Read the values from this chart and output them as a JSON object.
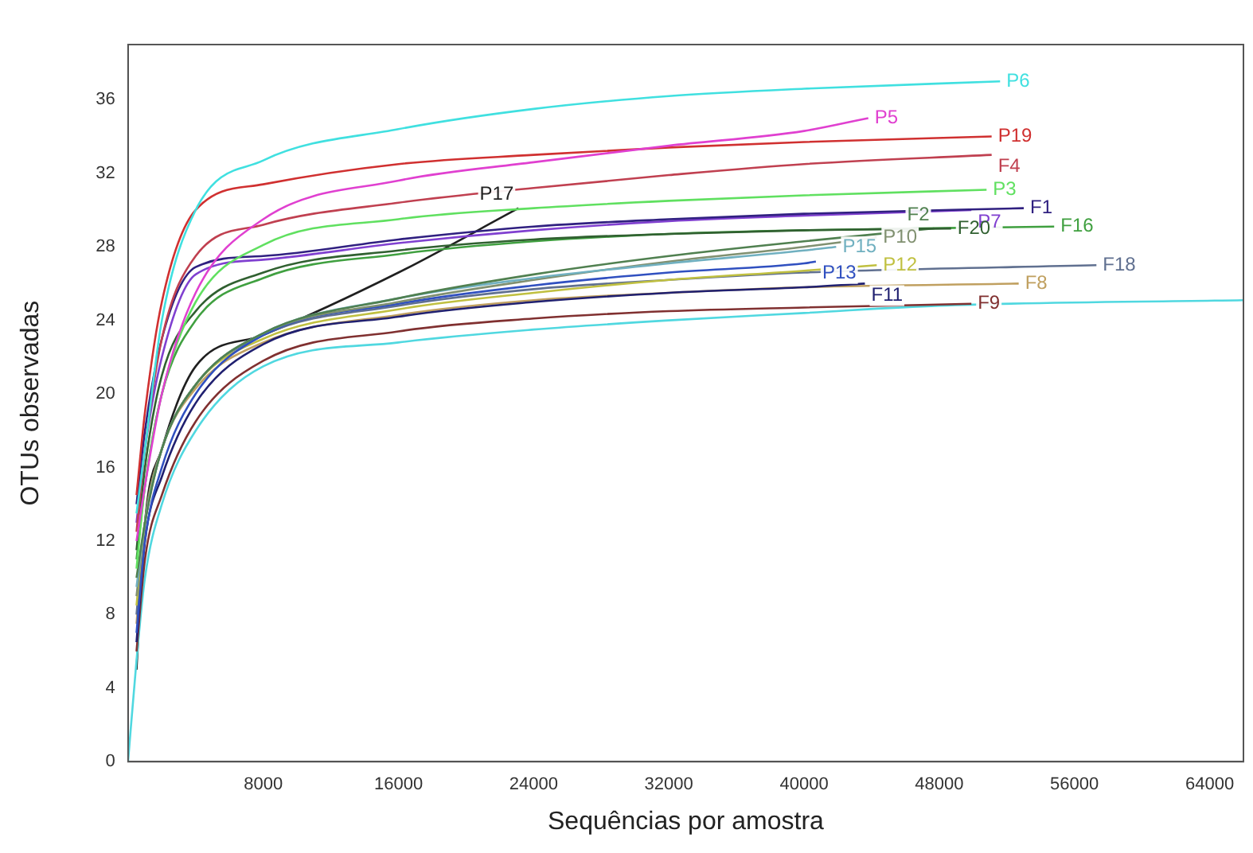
{
  "chart_data": {
    "type": "line",
    "xlabel": "Sequências por amostra",
    "ylabel": "OTUs observadas",
    "xlim": [
      0,
      66000
    ],
    "xticks": [
      8000,
      16000,
      24000,
      32000,
      40000,
      48000,
      56000,
      64000
    ],
    "ylim": [
      0,
      39
    ],
    "yticks": [
      0,
      4,
      8,
      12,
      16,
      20,
      24,
      28,
      32,
      36
    ],
    "grid": false,
    "legend": false,
    "marker": "none",
    "line_style": "solid",
    "series": [
      {
        "name": "P6",
        "color": "#40e0e0",
        "x": [
          500,
          1000,
          2000,
          4000,
          8000,
          16000,
          24000,
          32000,
          40000,
          51600
        ],
        "values": [
          13.5,
          17,
          24,
          30,
          32.7,
          34.4,
          35.5,
          36.2,
          36.6,
          37.0
        ]
      },
      {
        "name": "P5",
        "color": "#e040d0",
        "x": [
          500,
          1000,
          2000,
          4000,
          8000,
          16000,
          24000,
          32000,
          40000,
          43800
        ],
        "values": [
          12,
          15,
          20,
          25.5,
          29.5,
          31.6,
          32.6,
          33.5,
          34.3,
          35.0
        ]
      },
      {
        "name": "P19",
        "color": "#d03030",
        "x": [
          500,
          1000,
          2000,
          4000,
          8000,
          16000,
          24000,
          32000,
          40000,
          51100
        ],
        "values": [
          14.5,
          19,
          25,
          30,
          31.4,
          32.5,
          33.0,
          33.4,
          33.7,
          34.0
        ]
      },
      {
        "name": "F4",
        "color": "#c04050",
        "x": [
          500,
          1000,
          2000,
          4000,
          8000,
          16000,
          24000,
          32000,
          40000,
          51100
        ],
        "values": [
          12.5,
          17,
          23,
          27.5,
          29.2,
          30.4,
          31.2,
          31.9,
          32.5,
          33.0
        ]
      },
      {
        "name": "P3",
        "color": "#60e060",
        "x": [
          500,
          1000,
          2000,
          4000,
          8000,
          16000,
          24000,
          32000,
          40000,
          50800
        ],
        "values": [
          10.5,
          15,
          20,
          25,
          28.1,
          29.5,
          30.1,
          30.5,
          30.8,
          31.1
        ]
      },
      {
        "name": "F1",
        "color": "#302080",
        "x": [
          500,
          1000,
          2000,
          4000,
          8000,
          16000,
          24000,
          32000,
          40000,
          53000
        ],
        "values": [
          14,
          18,
          23,
          26.9,
          27.5,
          28.4,
          29.1,
          29.5,
          29.8,
          30.1
        ]
      },
      {
        "name": "P7",
        "color": "#8040d0",
        "x": [
          500,
          1000,
          2000,
          4000,
          8000,
          16000,
          24000,
          32000,
          40000,
          49900
        ],
        "values": [
          13,
          17,
          22,
          26.5,
          27.3,
          28.2,
          28.9,
          29.4,
          29.7,
          30.0
        ]
      },
      {
        "name": "F20",
        "color": "#306030",
        "x": [
          500,
          1000,
          2000,
          4000,
          8000,
          16000,
          24000,
          32000,
          40000,
          48700
        ],
        "values": [
          11.5,
          16,
          21,
          24.5,
          26.6,
          27.8,
          28.4,
          28.7,
          28.9,
          29.0
        ]
      },
      {
        "name": "F16",
        "color": "#40a040",
        "x": [
          500,
          1000,
          2000,
          4000,
          8000,
          16000,
          24000,
          32000,
          40000,
          54800
        ],
        "values": [
          11,
          15,
          20,
          24,
          26.3,
          27.6,
          28.3,
          28.7,
          28.9,
          29.1
        ]
      },
      {
        "name": "F2",
        "color": "#508050",
        "x": [
          500,
          1000,
          2000,
          4000,
          8000,
          16000,
          24000,
          32000,
          40000,
          47700
        ],
        "values": [
          10,
          13,
          17,
          20.5,
          23.3,
          25.2,
          26.5,
          27.5,
          28.3,
          29.0
        ]
      },
      {
        "name": "P15",
        "color": "#70b0c0",
        "x": [
          500,
          1000,
          2000,
          4000,
          8000,
          16000,
          24000,
          32000,
          40000,
          41900
        ],
        "values": [
          9.5,
          13,
          17,
          20.5,
          23.3,
          25.2,
          26.3,
          27.1,
          27.8,
          28.0
        ]
      },
      {
        "name": "P10",
        "color": "#809070",
        "x": [
          500,
          1000,
          2000,
          4000,
          8000,
          16000,
          24000,
          32000,
          40000,
          44300
        ],
        "values": [
          9,
          13,
          17,
          20.5,
          23.3,
          25.0,
          26.2,
          27.2,
          28.0,
          28.5
        ]
      },
      {
        "name": "P13",
        "color": "#3050c0",
        "x": [
          500,
          1000,
          2000,
          4000,
          8000,
          16000,
          24000,
          32000,
          40000,
          40700
        ],
        "values": [
          7,
          12,
          16,
          20,
          23.2,
          24.9,
          25.9,
          26.6,
          27.1,
          27.2
        ]
      },
      {
        "name": "P12",
        "color": "#c0c040",
        "x": [
          500,
          1000,
          2000,
          4000,
          8000,
          16000,
          24000,
          32000,
          40000,
          44300
        ],
        "values": [
          8.5,
          13,
          17,
          20.5,
          23,
          24.6,
          25.5,
          26.2,
          26.7,
          27.0
        ]
      },
      {
        "name": "F18",
        "color": "#607090",
        "x": [
          500,
          1000,
          2000,
          4000,
          8000,
          16000,
          24000,
          32000,
          40000,
          57300
        ],
        "values": [
          8,
          13,
          17,
          20.5,
          23.2,
          24.8,
          25.7,
          26.2,
          26.6,
          27.0
        ]
      },
      {
        "name": "F11",
        "color": "#202070",
        "x": [
          500,
          1000,
          2000,
          4000,
          8000,
          16000,
          24000,
          32000,
          40000,
          43600
        ],
        "values": [
          6.5,
          12,
          15.5,
          19.5,
          22.7,
          24.2,
          25.0,
          25.5,
          25.8,
          26.0
        ]
      },
      {
        "name": "F8",
        "color": "#c0a060",
        "x": [
          500,
          1000,
          2000,
          4000,
          8000,
          16000,
          24000,
          32000,
          40000,
          52700
        ],
        "values": [
          7.5,
          13,
          17,
          20.3,
          22.8,
          24.3,
          25.1,
          25.5,
          25.8,
          26.0
        ]
      },
      {
        "name": "F9",
        "color": "#803030",
        "x": [
          500,
          1000,
          2000,
          4000,
          8000,
          16000,
          24000,
          32000,
          40000,
          49900
        ],
        "values": [
          6,
          11,
          14.5,
          18.5,
          21.8,
          23.4,
          24.1,
          24.5,
          24.7,
          24.9
        ]
      },
      {
        "color": "#50d8e0",
        "x": [
          0,
          500,
          1000,
          2000,
          4000,
          8000,
          16000,
          24000,
          32000,
          40000,
          48000,
          66000
        ],
        "values": [
          0,
          5.5,
          10,
          14,
          18,
          21.5,
          22.8,
          23.5,
          24.0,
          24.4,
          24.8,
          25.1
        ]
      },
      {
        "name": "P17",
        "color": "#202020",
        "x": [
          500,
          1000,
          2000,
          4000,
          8000,
          16000,
          23100
        ],
        "values": [
          5,
          13,
          17,
          21.5,
          23.2,
          26.6,
          30.1
        ]
      }
    ]
  }
}
